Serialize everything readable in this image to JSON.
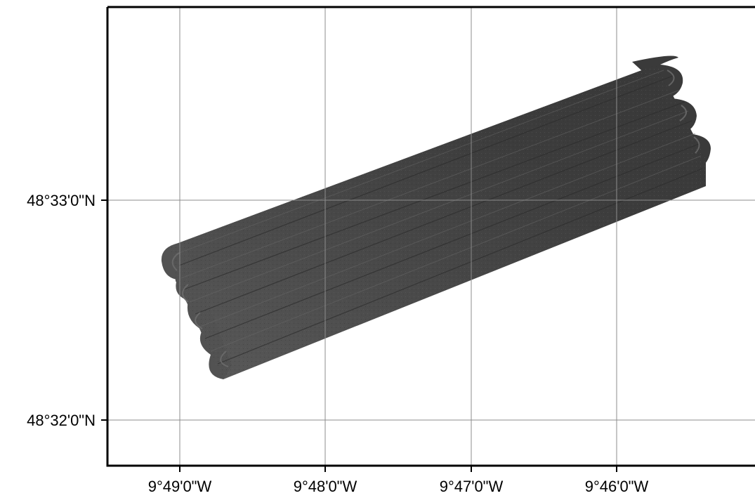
{
  "map": {
    "grid_color": "#8c8c8c",
    "frame_color": "#000000",
    "data_color": "#404040",
    "longitude_labels": [
      "9°49'0\"W",
      "9°48'0\"W",
      "9°47'0\"W",
      "9°46'0\"W"
    ],
    "latitude_labels": [
      "48°33'0\"N",
      "48°32'0\"N"
    ]
  }
}
